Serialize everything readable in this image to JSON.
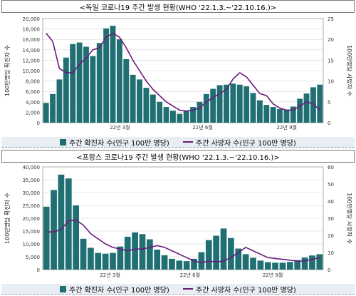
{
  "chart_data": [
    {
      "type": "bar",
      "title": "<독일 코로나19 주간 발생 현황(WHO '22.1.3.~'22.10.16.)>",
      "x_ticks": [
        "22년 3월",
        "22년 6월",
        "22년 9월"
      ],
      "left_axis": {
        "label": "100만명당 확진자 수",
        "ylim": [
          0,
          20000
        ],
        "ticks": [
          "0",
          "2,000",
          "4,000",
          "6,000",
          "8,000",
          "10,000",
          "12,000",
          "14,000",
          "16,000",
          "18,000",
          "20,000"
        ]
      },
      "right_axis": {
        "label": "100만명당 사망자 수",
        "ylim": [
          0,
          25
        ],
        "ticks": [
          "0",
          "5",
          "10",
          "15",
          "20",
          "25"
        ]
      },
      "series": [
        {
          "name": "주간 확진자 수(인구 100만 명당)",
          "type": "bar",
          "axis": "left",
          "color": "#1f6f73",
          "values": [
            3800,
            5500,
            8300,
            12500,
            15100,
            15400,
            14600,
            12800,
            15300,
            18100,
            18600,
            16000,
            12200,
            9200,
            8300,
            6700,
            5400,
            4000,
            3000,
            2300,
            1700,
            2300,
            3000,
            4000,
            5500,
            6500,
            7200,
            7300,
            7500,
            7300,
            7000,
            5700,
            4300,
            3400,
            3000,
            2600,
            2500,
            3100,
            4600,
            5600,
            6800,
            7300
          ]
        },
        {
          "name": "주간 사망자 수(인구 100만 명당)",
          "type": "line",
          "axis": "right",
          "color": "#6a1a7a",
          "values": [
            21.5,
            19.5,
            13.0,
            12.0,
            12.0,
            14.0,
            15.5,
            17.5,
            18.0,
            20.5,
            21.5,
            20.5,
            18.0,
            15.0,
            12.5,
            10.0,
            8.0,
            6.5,
            5.0,
            4.0,
            3.0,
            2.8,
            3.0,
            3.5,
            5.0,
            6.0,
            7.0,
            8.0,
            10.5,
            12.0,
            11.0,
            9.0,
            7.0,
            6.5,
            4.5,
            3.5,
            3.0,
            3.0,
            4.0,
            5.0,
            4.5,
            3.0
          ]
        }
      ]
    },
    {
      "type": "bar",
      "title": "<프랑스 코로나19 주간 발생 현황(WHO '22.1.3.~'22.10.16.)>",
      "x_ticks": [
        "22년 3월",
        "22년 6월",
        "22년 9월"
      ],
      "left_axis": {
        "label": "100만명당 확진자 수",
        "ylim": [
          0,
          40000
        ],
        "ticks": [
          "0",
          "5,000",
          "10,000",
          "15,000",
          "20,000",
          "25,000",
          "30,000",
          "35,000",
          "40,000"
        ]
      },
      "right_axis": {
        "label": "100만명당 사망자 수",
        "ylim": [
          0,
          60
        ],
        "ticks": [
          "0",
          "10",
          "20",
          "30",
          "40",
          "50",
          "60"
        ]
      },
      "series": [
        {
          "name": "주간 확진자 수(인구 100만 명당)",
          "type": "bar",
          "axis": "left",
          "color": "#1f6f73",
          "values": [
            24500,
            31000,
            37000,
            35500,
            25000,
            12000,
            8500,
            6500,
            6200,
            6500,
            9000,
            12800,
            14500,
            13800,
            11800,
            7800,
            5600,
            4200,
            3500,
            3300,
            4200,
            6800,
            11500,
            13200,
            16000,
            12300,
            8200,
            6000,
            4600,
            3500,
            2900,
            2700,
            2700,
            3000,
            3700,
            4700,
            5500,
            6000
          ]
        },
        {
          "name": "주간 사망자 수(인구 100만 명당)",
          "type": "line",
          "axis": "right",
          "color": "#6a1a7a",
          "values": [
            22.0,
            22.0,
            23.5,
            28.5,
            29.0,
            26.0,
            21.0,
            18.0,
            15.0,
            13.0,
            12.0,
            11.0,
            12.0,
            12.0,
            13.0,
            14.0,
            13.0,
            11.0,
            9.0,
            7.0,
            5.0,
            4.0,
            5.0,
            4.5,
            5.0,
            7.0,
            10.0,
            13.0,
            11.0,
            9.0,
            7.0,
            6.5,
            6.0,
            5.5,
            5.0,
            5.0,
            6.0,
            7.0
          ]
        }
      ]
    }
  ]
}
